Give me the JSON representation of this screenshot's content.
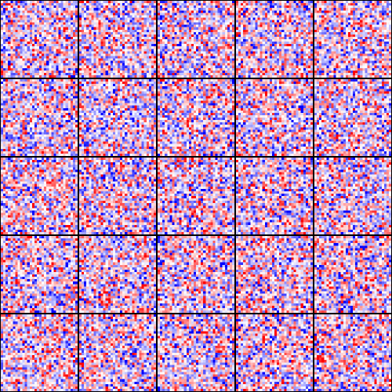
{
  "chart_data": {
    "type": "heatmap",
    "title": "",
    "xlabel": "",
    "ylabel": "",
    "grid_layout": {
      "rows": 5,
      "cols": 5
    },
    "cells_per_panel": {
      "rows": 32,
      "cols": 32
    },
    "colormap": "bwr",
    "color_stops": {
      "negative": "#0000ff",
      "zero": "#ffffff",
      "positive": "#ff0000"
    },
    "value_range": [
      -1,
      1
    ],
    "values_note_source": "pixel noise",
    "panel_border_color": "#000000",
    "panels": [
      {
        "row": 0,
        "col": 0,
        "seed": 101
      },
      {
        "row": 0,
        "col": 1,
        "seed": 102
      },
      {
        "row": 0,
        "col": 2,
        "seed": 103
      },
      {
        "row": 0,
        "col": 3,
        "seed": 104
      },
      {
        "row": 0,
        "col": 4,
        "seed": 105
      },
      {
        "row": 1,
        "col": 0,
        "seed": 201
      },
      {
        "row": 1,
        "col": 1,
        "seed": 202
      },
      {
        "row": 1,
        "col": 2,
        "seed": 203
      },
      {
        "row": 1,
        "col": 3,
        "seed": 204
      },
      {
        "row": 1,
        "col": 4,
        "seed": 205
      },
      {
        "row": 2,
        "col": 0,
        "seed": 301
      },
      {
        "row": 2,
        "col": 1,
        "seed": 302
      },
      {
        "row": 2,
        "col": 2,
        "seed": 303
      },
      {
        "row": 2,
        "col": 3,
        "seed": 304
      },
      {
        "row": 2,
        "col": 4,
        "seed": 305
      },
      {
        "row": 3,
        "col": 0,
        "seed": 401
      },
      {
        "row": 3,
        "col": 1,
        "seed": 402
      },
      {
        "row": 3,
        "col": 2,
        "seed": 403
      },
      {
        "row": 3,
        "col": 3,
        "seed": 404
      },
      {
        "row": 3,
        "col": 4,
        "seed": 405
      },
      {
        "row": 4,
        "col": 0,
        "seed": 501
      },
      {
        "row": 4,
        "col": 1,
        "seed": 502
      },
      {
        "row": 4,
        "col": 2,
        "seed": 503
      },
      {
        "row": 4,
        "col": 3,
        "seed": 504
      },
      {
        "row": 4,
        "col": 4,
        "seed": 505
      }
    ]
  }
}
